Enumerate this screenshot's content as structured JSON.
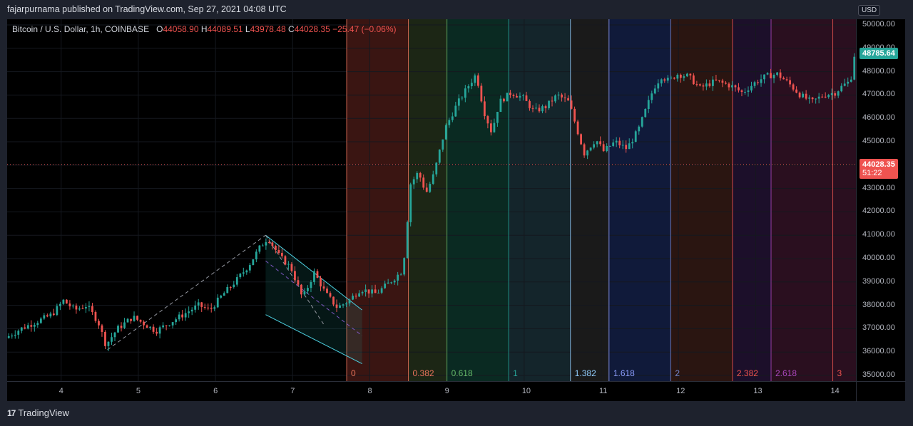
{
  "publish_line": "fajarpurnama published on TradingView.com, Sep 27, 2021 04:08 UTC",
  "symbol_legend": {
    "symbol": "Bitcoin / U.S. Dollar, 1h, COINBASE",
    "open_key": "O",
    "open": "44058.90",
    "high_key": "H",
    "high": "44089.51",
    "low_key": "L",
    "low": "43978.48",
    "close_key": "C",
    "close": "44028.35",
    "change": "−25.47 (−0.06%)"
  },
  "currency_badge": "USD",
  "footer_logo": "TradingView",
  "logo_mark": "17",
  "colors": {
    "up": "#26a69a",
    "down": "#ef5350",
    "background": "#000000",
    "frame": "#1e222d"
  },
  "chart_data": {
    "type": "candlestick",
    "symbol": "BTCUSD",
    "interval": "1h",
    "exchange": "COINBASE",
    "x_ticks": [
      "4",
      "5",
      "6",
      "7",
      "8",
      "9",
      "10",
      "11",
      "12",
      "13",
      "14"
    ],
    "y_ticks": [
      "35000.00",
      "36000.00",
      "37000.00",
      "38000.00",
      "39000.00",
      "40000.00",
      "41000.00",
      "42000.00",
      "43000.00",
      "44000.00",
      "45000.00",
      "46000.00",
      "47000.00",
      "48000.00",
      "49000.00",
      "50000.00"
    ],
    "ylim": [
      35000,
      50000
    ],
    "xlim_days": [
      3.3,
      14.3
    ],
    "price_tags": [
      {
        "label": "48785.64",
        "value": 48785.64,
        "color": "#26a69a"
      },
      {
        "label": "44028.35",
        "value": 44028.35,
        "color": "#ef5350",
        "sub": "51:22"
      }
    ],
    "current_price_line": 44028.35,
    "fib_time_zones": [
      {
        "label": "0",
        "x": 7.7,
        "color": "#e8735a",
        "fill": "#3a1512"
      },
      {
        "label": "0.382",
        "x": 8.5,
        "color": "#e8735a",
        "fill": "#1c2615"
      },
      {
        "label": "0.618",
        "x": 9.0,
        "color": "#66bb6a",
        "fill": "#0a2a22"
      },
      {
        "label": "1",
        "x": 9.8,
        "color": "#26a69a",
        "fill": "#14252b"
      },
      {
        "label": "1.382",
        "x": 10.6,
        "color": "#90caf9",
        "fill": "#1a1a1a"
      },
      {
        "label": "1.618",
        "x": 11.1,
        "color": "#8c9eff",
        "fill": "#101a3a"
      },
      {
        "label": "2",
        "x": 11.9,
        "color": "#7986cb",
        "fill": "#2a1511"
      },
      {
        "label": "2.382",
        "x": 12.7,
        "color": "#ef5350",
        "fill": "#1c0f2a"
      },
      {
        "label": "2.618",
        "x": 13.2,
        "color": "#ab47bc",
        "fill": "#2a0f1f"
      },
      {
        "label": "3",
        "x": 14.0,
        "color": "#ef5350",
        "fill": "#2a0f1f"
      }
    ],
    "channel": {
      "upper": [
        [
          6.65,
          41000
        ],
        [
          7.9,
          37800
        ]
      ],
      "lower": [
        [
          6.65,
          37600
        ],
        [
          7.9,
          35500
        ]
      ],
      "mid": [
        [
          6.65,
          39900
        ],
        [
          7.9,
          36700
        ]
      ]
    },
    "trend_lines": [
      {
        "from": [
          4.6,
          36100
        ],
        "to": [
          6.65,
          41000
        ]
      },
      {
        "from": [
          6.65,
          41000
        ],
        "to": [
          7.4,
          37200
        ]
      }
    ],
    "price_path": [
      [
        3.3,
        36600
      ],
      [
        3.5,
        37000
      ],
      [
        3.7,
        37300
      ],
      [
        3.9,
        37600
      ],
      [
        4.05,
        38200
      ],
      [
        4.2,
        37800
      ],
      [
        4.35,
        38000
      ],
      [
        4.5,
        37300
      ],
      [
        4.6,
        36300
      ],
      [
        4.75,
        37000
      ],
      [
        4.95,
        37500
      ],
      [
        5.1,
        37200
      ],
      [
        5.25,
        36900
      ],
      [
        5.45,
        37300
      ],
      [
        5.6,
        37600
      ],
      [
        5.8,
        38000
      ],
      [
        5.95,
        37800
      ],
      [
        6.1,
        38400
      ],
      [
        6.3,
        39100
      ],
      [
        6.45,
        39700
      ],
      [
        6.6,
        40500
      ],
      [
        6.7,
        40900
      ],
      [
        6.85,
        40100
      ],
      [
        7.0,
        39600
      ],
      [
        7.15,
        38300
      ],
      [
        7.3,
        39400
      ],
      [
        7.45,
        38500
      ],
      [
        7.6,
        37900
      ],
      [
        7.75,
        38200
      ],
      [
        7.9,
        38700
      ],
      [
        8.1,
        38500
      ],
      [
        8.25,
        38900
      ],
      [
        8.45,
        39500
      ],
      [
        8.55,
        43200
      ],
      [
        8.65,
        43700
      ],
      [
        8.75,
        42800
      ],
      [
        8.85,
        43600
      ],
      [
        9.0,
        45600
      ],
      [
        9.15,
        46600
      ],
      [
        9.3,
        47400
      ],
      [
        9.4,
        47900
      ],
      [
        9.5,
        46300
      ],
      [
        9.6,
        45400
      ],
      [
        9.7,
        46700
      ],
      [
        9.85,
        47100
      ],
      [
        10.0,
        46900
      ],
      [
        10.15,
        46300
      ],
      [
        10.3,
        46500
      ],
      [
        10.45,
        47000
      ],
      [
        10.6,
        46700
      ],
      [
        10.7,
        45600
      ],
      [
        10.8,
        44500
      ],
      [
        10.95,
        45100
      ],
      [
        11.05,
        44600
      ],
      [
        11.2,
        45000
      ],
      [
        11.35,
        44700
      ],
      [
        11.5,
        45500
      ],
      [
        11.6,
        46400
      ],
      [
        11.7,
        47300
      ],
      [
        11.8,
        47800
      ],
      [
        11.9,
        47600
      ],
      [
        12.0,
        47900
      ],
      [
        12.15,
        47800
      ],
      [
        12.3,
        47300
      ],
      [
        12.5,
        47600
      ],
      [
        12.7,
        47400
      ],
      [
        12.85,
        47100
      ],
      [
        13.0,
        47500
      ],
      [
        13.15,
        47800
      ],
      [
        13.3,
        47900
      ],
      [
        13.45,
        47500
      ],
      [
        13.6,
        47000
      ],
      [
        13.75,
        46700
      ],
      [
        13.9,
        47000
      ],
      [
        14.05,
        47100
      ],
      [
        14.15,
        47400
      ],
      [
        14.25,
        47600
      ],
      [
        14.3,
        48700
      ]
    ]
  }
}
